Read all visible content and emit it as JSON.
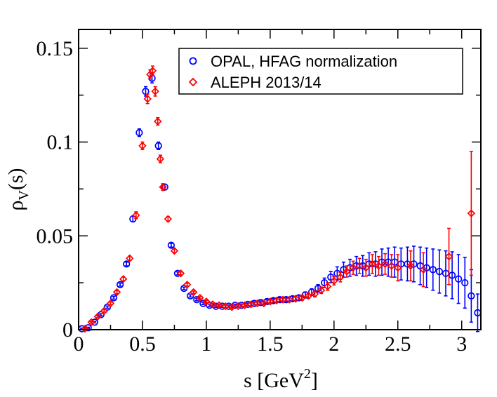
{
  "chart_data": {
    "type": "scatter",
    "xlabel": "s [GeV",
    "xlabel_sup": "2",
    "xlabel_end": "]",
    "ylabel": "ρ",
    "ylabel_sub": "V",
    "ylabel_end": "(s)",
    "xlim": [
      0,
      3.15
    ],
    "ylim": [
      0,
      0.16
    ],
    "x_ticks": [
      0,
      0.5,
      1,
      1.5,
      2,
      2.5,
      3
    ],
    "x_tick_labels": [
      "0",
      "0.5",
      "1",
      "1.5",
      "2",
      "2.5",
      "3"
    ],
    "y_ticks": [
      0,
      0.05,
      0.1,
      0.15
    ],
    "y_tick_labels": [
      "0",
      "0.05",
      "0.1",
      "0.15"
    ],
    "legend_position": "top-right",
    "series": [
      {
        "name": "OPAL, HFAG normalization",
        "marker": "circle",
        "color": "#0000ff",
        "x": [
          0.025,
          0.075,
          0.125,
          0.175,
          0.225,
          0.275,
          0.325,
          0.375,
          0.425,
          0.475,
          0.525,
          0.575,
          0.625,
          0.675,
          0.725,
          0.775,
          0.825,
          0.875,
          0.925,
          0.975,
          1.025,
          1.075,
          1.125,
          1.175,
          1.225,
          1.275,
          1.325,
          1.375,
          1.425,
          1.475,
          1.525,
          1.575,
          1.625,
          1.675,
          1.725,
          1.775,
          1.825,
          1.875,
          1.925,
          1.975,
          2.025,
          2.075,
          2.125,
          2.175,
          2.225,
          2.275,
          2.325,
          2.375,
          2.425,
          2.475,
          2.525,
          2.575,
          2.625,
          2.675,
          2.725,
          2.775,
          2.825,
          2.875,
          2.925,
          2.975,
          3.025,
          3.075,
          3.125
        ],
        "y": [
          0.0005,
          0.001,
          0.004,
          0.008,
          0.012,
          0.017,
          0.024,
          0.035,
          0.059,
          0.105,
          0.127,
          0.134,
          0.098,
          0.076,
          0.045,
          0.03,
          0.022,
          0.018,
          0.016,
          0.014,
          0.013,
          0.0125,
          0.0125,
          0.0125,
          0.013,
          0.013,
          0.0135,
          0.014,
          0.0145,
          0.015,
          0.0155,
          0.016,
          0.016,
          0.0165,
          0.017,
          0.0185,
          0.02,
          0.022,
          0.025,
          0.028,
          0.03,
          0.032,
          0.033,
          0.034,
          0.034,
          0.035,
          0.035,
          0.036,
          0.036,
          0.036,
          0.035,
          0.035,
          0.035,
          0.034,
          0.033,
          0.032,
          0.031,
          0.03,
          0.029,
          0.027,
          0.025,
          0.018,
          0.009
        ],
        "err": [
          0.0003,
          0.0003,
          0.0004,
          0.0005,
          0.0006,
          0.0007,
          0.0008,
          0.001,
          0.0015,
          0.002,
          0.0025,
          0.0025,
          0.002,
          0.0015,
          0.001,
          0.0008,
          0.0007,
          0.0006,
          0.0006,
          0.0006,
          0.0006,
          0.0006,
          0.0006,
          0.0006,
          0.0006,
          0.0007,
          0.0007,
          0.0008,
          0.0008,
          0.0009,
          0.001,
          0.0011,
          0.0012,
          0.0013,
          0.0014,
          0.0016,
          0.0018,
          0.002,
          0.0025,
          0.003,
          0.0035,
          0.004,
          0.0045,
          0.005,
          0.0055,
          0.006,
          0.0065,
          0.007,
          0.0075,
          0.008,
          0.0085,
          0.009,
          0.0095,
          0.01,
          0.0105,
          0.011,
          0.0115,
          0.012,
          0.0125,
          0.013,
          0.0135,
          0.014,
          0.01
        ]
      },
      {
        "name": "ALEPH 2013/14",
        "marker": "diamond",
        "color": "#ff0000",
        "x": [
          0.05,
          0.1,
          0.15,
          0.2,
          0.25,
          0.3,
          0.35,
          0.4,
          0.45,
          0.5,
          0.54,
          0.56,
          0.58,
          0.6,
          0.62,
          0.64,
          0.66,
          0.7,
          0.75,
          0.8,
          0.85,
          0.9,
          0.95,
          1.0,
          1.05,
          1.1,
          1.15,
          1.2,
          1.25,
          1.3,
          1.35,
          1.4,
          1.45,
          1.5,
          1.55,
          1.6,
          1.65,
          1.7,
          1.75,
          1.8,
          1.85,
          1.9,
          1.95,
          2.0,
          2.05,
          2.1,
          2.15,
          2.2,
          2.25,
          2.3,
          2.35,
          2.4,
          2.45,
          2.5,
          2.6,
          2.7,
          2.9,
          3.075
        ],
        "y": [
          0.0005,
          0.004,
          0.007,
          0.01,
          0.014,
          0.02,
          0.027,
          0.038,
          0.061,
          0.098,
          0.123,
          0.136,
          0.138,
          0.127,
          0.111,
          0.091,
          0.076,
          0.059,
          0.042,
          0.03,
          0.024,
          0.02,
          0.017,
          0.015,
          0.0135,
          0.013,
          0.0125,
          0.012,
          0.0125,
          0.013,
          0.0135,
          0.014,
          0.014,
          0.015,
          0.0155,
          0.016,
          0.016,
          0.0165,
          0.017,
          0.018,
          0.019,
          0.021,
          0.023,
          0.026,
          0.028,
          0.031,
          0.033,
          0.034,
          0.033,
          0.035,
          0.034,
          0.035,
          0.034,
          0.033,
          0.034,
          0.032,
          0.039,
          0.062
        ],
        "err": [
          0.0003,
          0.0004,
          0.0005,
          0.0006,
          0.0007,
          0.0008,
          0.001,
          0.0012,
          0.0018,
          0.002,
          0.0025,
          0.0025,
          0.0025,
          0.0025,
          0.002,
          0.002,
          0.0018,
          0.0012,
          0.001,
          0.0008,
          0.0007,
          0.0006,
          0.0006,
          0.0006,
          0.0006,
          0.0006,
          0.0006,
          0.0006,
          0.0006,
          0.0006,
          0.0007,
          0.0007,
          0.0008,
          0.0008,
          0.0009,
          0.001,
          0.0011,
          0.0012,
          0.0013,
          0.0014,
          0.0015,
          0.0017,
          0.002,
          0.0022,
          0.0025,
          0.003,
          0.0035,
          0.004,
          0.0045,
          0.005,
          0.005,
          0.0055,
          0.006,
          0.007,
          0.008,
          0.009,
          0.015,
          0.033
        ]
      }
    ]
  }
}
